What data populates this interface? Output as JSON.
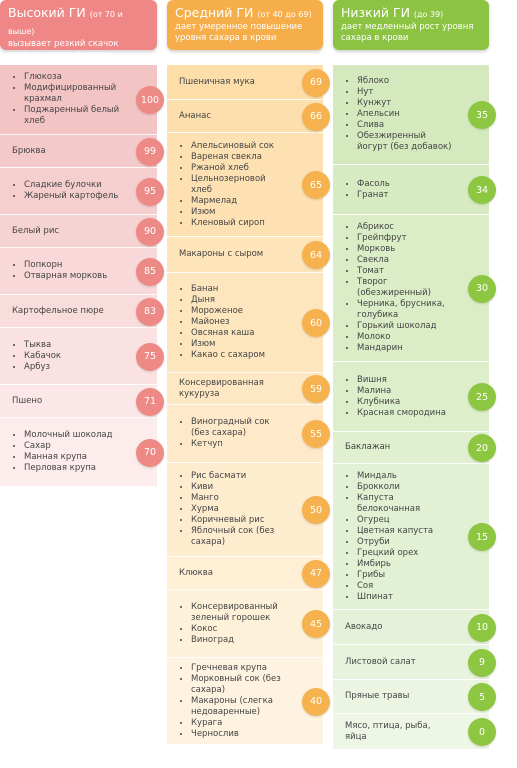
{
  "columns": [
    {
      "title": "Высокий ГИ",
      "range": "(от 70 и выше)",
      "subtitle": "вызывает резкий скачок уровня сахара в крови",
      "rows": [
        {
          "items": [
            "Глюкоза",
            "Модифицированный крахмал",
            "Поджаренный белый хлеб"
          ],
          "gi": 100
        },
        {
          "label": "Брюква",
          "gi": 99
        },
        {
          "items": [
            "Сладкие булочки",
            "Жареный картофель"
          ],
          "gi": 95
        },
        {
          "label": "Белый рис",
          "gi": 90
        },
        {
          "items": [
            "Попкорн",
            "Отварная морковь"
          ],
          "gi": 85
        },
        {
          "label": "Картофельное пюре",
          "gi": 83
        },
        {
          "items": [
            "Тыква",
            "Кабачок",
            "Арбуз"
          ],
          "gi": 75
        },
        {
          "label": "Пшено",
          "gi": 71
        },
        {
          "items": [
            "Молочный шоколад",
            "Сахар",
            "Манная крупа",
            "Перловая крупа"
          ],
          "gi": 70
        }
      ]
    },
    {
      "title": "Средний ГИ",
      "range": "(от 40 до 69)",
      "subtitle": "дает умеренное повышение уровня сахара в крови",
      "rows": [
        {
          "label": "Пшеничная мука",
          "gi": 69
        },
        {
          "label": "Ананас",
          "gi": 66
        },
        {
          "items": [
            "Апельсиновый сок",
            "Вареная свекла",
            "Ржаной хлеб",
            "Цельнозерновой хлеб",
            "Мармелад",
            "Изюм",
            "Кленовый сироп"
          ],
          "gi": 65
        },
        {
          "label": "Макароны с сыром",
          "gi": 64
        },
        {
          "items": [
            "Банан",
            "Дыня",
            "Мороженое",
            "Майонез",
            "Овсяная каша",
            "Изюм",
            "Какао с сахаром"
          ],
          "gi": 60
        },
        {
          "label": "Консервированная кукуруза",
          "gi": 59
        },
        {
          "items": [
            "Виноградный сок (без сахара)",
            "Кетчуп"
          ],
          "gi": 55
        },
        {
          "items": [
            "Рис басмати",
            "Киви",
            "Манго",
            "Хурма",
            "Коричневый рис",
            "Яблочный сок (без сахара)"
          ],
          "gi": 50
        },
        {
          "label": "Клюква",
          "gi": 47
        },
        {
          "items": [
            "Консервированный зеленый горошек",
            "Кокос",
            "Виноград"
          ],
          "gi": 45
        },
        {
          "items": [
            "Гречневая крупа",
            "Морковный сок (без сахара)",
            "Макароны (слегка недоваренные)",
            "Курага",
            "Чернослив"
          ],
          "gi": 40
        }
      ]
    },
    {
      "title": "Низкий ГИ",
      "range": "(до 39)",
      "subtitle": "дает медленный рост уровня сахара в крови",
      "rows": [
        {
          "items": [
            "Яблоко",
            "Нут",
            "Кунжут",
            "Апельсин",
            "Слива",
            "Обезжиренный йогурт (без добавок)"
          ],
          "gi": 35
        },
        {
          "items": [
            "Фасоль",
            "Гранат"
          ],
          "gi": 34
        },
        {
          "items": [
            "Абрикос",
            "Грейпфрут",
            "Морковь",
            "Свекла",
            "Томат",
            "Творог (обезжиренный)",
            "Черника, брусника, голубика",
            "Горький шоколад",
            "Молоко",
            "Мандарин"
          ],
          "gi": 30
        },
        {
          "items": [
            "Вишня",
            "Малина",
            "Клубника",
            "Красная смородина"
          ],
          "gi": 25
        },
        {
          "label": "Баклажан",
          "gi": 20
        },
        {
          "items": [
            "Миндаль",
            "Брокколи",
            "Капуста белокочанная",
            "Огурец",
            "Цветная капуста",
            "Отруби",
            "Грецкий орех",
            "Имбирь",
            "Грибы",
            "Соя",
            "Шпинат"
          ],
          "gi": 15
        },
        {
          "label": "Авокадо",
          "gi": 10
        },
        {
          "label": "Листовой салат",
          "gi": 9
        },
        {
          "label": "Пряные травы",
          "gi": 5
        },
        {
          "label": "Мясо, птица, рыба, яйца",
          "gi": 0
        }
      ]
    }
  ]
}
